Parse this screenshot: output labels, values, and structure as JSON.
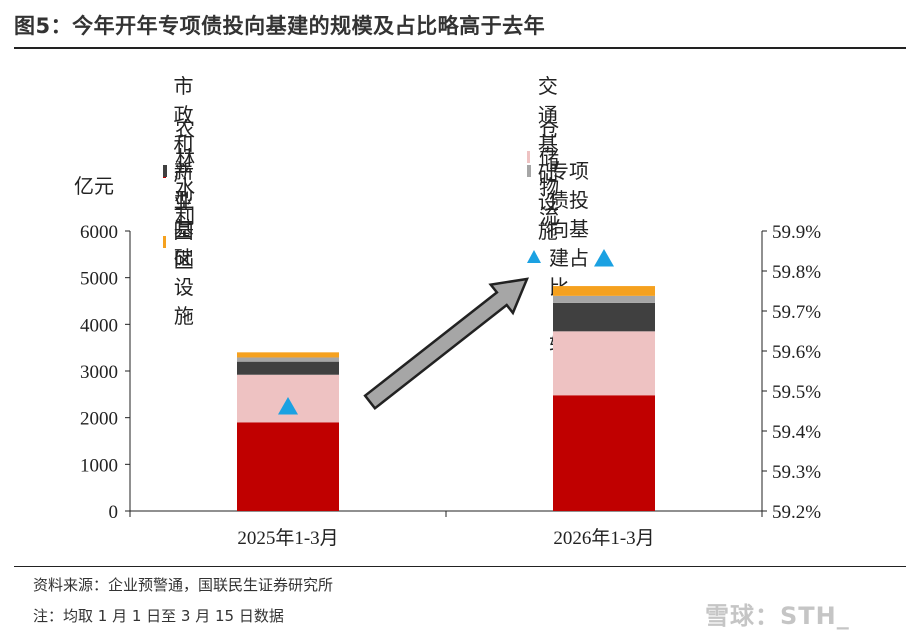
{
  "title": "图5：今年开年专项债投向基建的规模及占比略高于去年",
  "y_left_unit": "亿元",
  "footer": {
    "source": "资料来源：企业预警通，国联民生证券研究所",
    "note": "注：均取 1 月 1 日至 3 月 15 日数据"
  },
  "watermark": "雪球：STH_",
  "legend": [
    {
      "label": "市政和产业园区",
      "color": "#c00000",
      "marker": "square"
    },
    {
      "label": "交通基础设施",
      "color": "#eec2c2",
      "marker": "square"
    },
    {
      "label": "农林水利",
      "color": "#404040",
      "marker": "square"
    },
    {
      "label": "仓储物流",
      "color": "#a6a6a6",
      "marker": "square"
    },
    {
      "label": "新型基础设施",
      "color": "#f5a11f",
      "marker": "square"
    },
    {
      "label": "专项债投向基建占比（右轴）",
      "color": "#1ba1e2",
      "marker": "triangle"
    }
  ],
  "chart_data": {
    "type": "bar",
    "stacked": true,
    "categories": [
      "2025年1-3月",
      "2026年1-3月"
    ],
    "series": [
      {
        "name": "市政和产业园区",
        "values": [
          1900,
          2480
        ],
        "color": "#c00000"
      },
      {
        "name": "交通基础设施",
        "values": [
          1020,
          1370
        ],
        "color": "#eec2c2"
      },
      {
        "name": "农林水利",
        "values": [
          280,
          610
        ],
        "color": "#404040"
      },
      {
        "name": "仓储物流",
        "values": [
          90,
          150
        ],
        "color": "#a6a6a6"
      },
      {
        "name": "新型基础设施",
        "values": [
          110,
          210
        ],
        "color": "#f5a11f"
      }
    ],
    "secondary_series": {
      "name": "专项债投向基建占比（右轴）",
      "type": "scatter",
      "marker": "triangle",
      "values": [
        59.46,
        59.83
      ],
      "color": "#1ba1e2"
    },
    "y_left": {
      "label": "亿元",
      "range": [
        0,
        6000
      ],
      "ticks": [
        0,
        1000,
        2000,
        3000,
        4000,
        5000,
        6000
      ],
      "tick_labels": [
        "0",
        "1000",
        "2000",
        "3000",
        "4000",
        "5000",
        "6000"
      ]
    },
    "y_right": {
      "range": [
        59.2,
        59.9
      ],
      "ticks": [
        59.2,
        59.3,
        59.4,
        59.5,
        59.6,
        59.7,
        59.8,
        59.9
      ],
      "tick_labels": [
        "59.2%",
        "59.3%",
        "59.4%",
        "59.5%",
        "59.6%",
        "59.7%",
        "59.8%",
        "59.9%"
      ]
    },
    "annotation": {
      "type": "arrow",
      "direction": "up-right",
      "fill": "#a6a6a6"
    },
    "grid": false,
    "legend_position": "top"
  }
}
